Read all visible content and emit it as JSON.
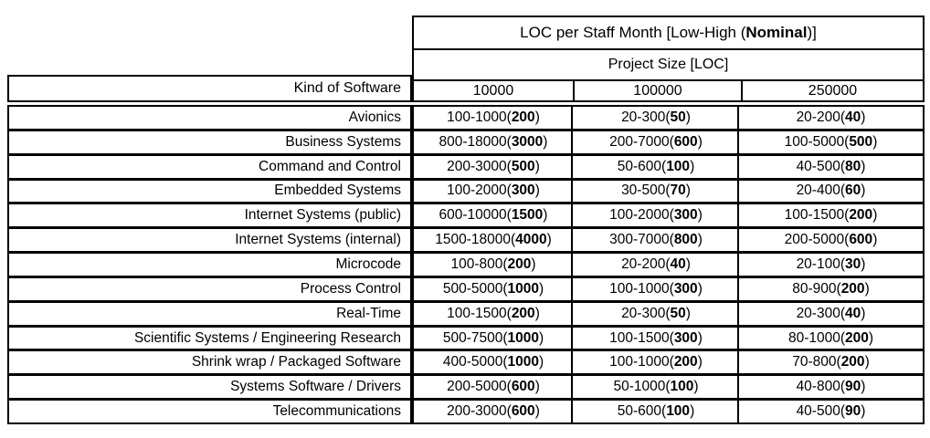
{
  "header": {
    "title_prefix": "LOC per Staff Month [Low-High (",
    "title_nominal": "Nominal",
    "title_suffix": ")]",
    "subtitle": "Project Size [LOC]",
    "kind_column": "Kind of Software",
    "size_columns": [
      "10000",
      "100000",
      "250000"
    ],
    "border_color": "#000000",
    "background_color": "#ffffff"
  },
  "rows": [
    {
      "kind": "Avionics",
      "cells": [
        {
          "range": "100-1000",
          "nominal": "200"
        },
        {
          "range": "20-300",
          "nominal": "50"
        },
        {
          "range": "20-200",
          "nominal": "40"
        }
      ]
    },
    {
      "kind": "Business Systems",
      "cells": [
        {
          "range": "800-18000",
          "nominal": "3000"
        },
        {
          "range": "200-7000",
          "nominal": "600"
        },
        {
          "range": "100-5000",
          "nominal": "500"
        }
      ]
    },
    {
      "kind": "Command and Control",
      "cells": [
        {
          "range": "200-3000",
          "nominal": "500"
        },
        {
          "range": "50-600",
          "nominal": "100"
        },
        {
          "range": "40-500",
          "nominal": "80"
        }
      ]
    },
    {
      "kind": "Embedded Systems",
      "cells": [
        {
          "range": "100-2000",
          "nominal": "300"
        },
        {
          "range": "30-500",
          "nominal": "70"
        },
        {
          "range": "20-400",
          "nominal": "60"
        }
      ]
    },
    {
      "kind": "Internet Systems (public)",
      "cells": [
        {
          "range": "600-10000",
          "nominal": "1500"
        },
        {
          "range": "100-2000",
          "nominal": "300"
        },
        {
          "range": "100-1500",
          "nominal": "200"
        }
      ]
    },
    {
      "kind": "Internet Systems (internal)",
      "cells": [
        {
          "range": "1500-18000",
          "nominal": "4000"
        },
        {
          "range": "300-7000",
          "nominal": "800"
        },
        {
          "range": "200-5000",
          "nominal": "600"
        }
      ]
    },
    {
      "kind": "Microcode",
      "cells": [
        {
          "range": "100-800",
          "nominal": "200"
        },
        {
          "range": "20-200",
          "nominal": "40"
        },
        {
          "range": "20-100",
          "nominal": "30"
        }
      ]
    },
    {
      "kind": "Process Control",
      "cells": [
        {
          "range": "500-5000",
          "nominal": "1000"
        },
        {
          "range": "100-1000",
          "nominal": "300"
        },
        {
          "range": "80-900",
          "nominal": "200"
        }
      ]
    },
    {
      "kind": "Real-Time",
      "cells": [
        {
          "range": "100-1500",
          "nominal": "200"
        },
        {
          "range": "20-300",
          "nominal": "50"
        },
        {
          "range": "20-300",
          "nominal": "40"
        }
      ]
    },
    {
      "kind": "Scientific Systems / Engineering Research",
      "cells": [
        {
          "range": "500-7500",
          "nominal": "1000"
        },
        {
          "range": "100-1500",
          "nominal": "300"
        },
        {
          "range": "80-1000",
          "nominal": "200"
        }
      ]
    },
    {
      "kind": "Shrink wrap / Packaged Software",
      "cells": [
        {
          "range": "400-5000",
          "nominal": "1000"
        },
        {
          "range": "100-1000",
          "nominal": "200"
        },
        {
          "range": "70-800",
          "nominal": "200"
        }
      ]
    },
    {
      "kind": "Systems Software / Drivers",
      "cells": [
        {
          "range": "200-5000",
          "nominal": "600"
        },
        {
          "range": "50-1000",
          "nominal": "100"
        },
        {
          "range": "40-800",
          "nominal": "90"
        }
      ]
    },
    {
      "kind": "Telecommunications",
      "cells": [
        {
          "range": "200-3000",
          "nominal": "600"
        },
        {
          "range": "50-600",
          "nominal": "100"
        },
        {
          "range": "40-500",
          "nominal": "90"
        }
      ]
    }
  ]
}
